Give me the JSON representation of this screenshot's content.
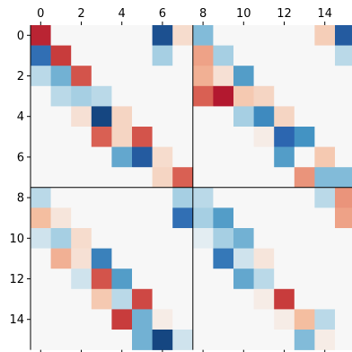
{
  "chart_data": {
    "type": "heatmap",
    "title": "",
    "xlabel": "",
    "ylabel": "",
    "x_range": [
      -0.5,
      15.5
    ],
    "y_range": [
      15.5,
      -0.5
    ],
    "x_ticks": [
      "0",
      "2",
      "4",
      "6",
      "8",
      "10",
      "12",
      "14"
    ],
    "y_ticks": [
      "0",
      "2",
      "4",
      "6",
      "8",
      "10",
      "12",
      "14"
    ],
    "colormap": "RdBu (diverging)",
    "value_range": [
      -1,
      1
    ],
    "block_dividers": [
      7.5
    ],
    "grid": false,
    "legend": "none",
    "colors": {
      "neutral": "#f7f7f7",
      "positive_max": "#a50026",
      "negative_max": "#2c66b0",
      "divider": "#000000"
    },
    "rows": [
      [
        0.85,
        0,
        0,
        0,
        0,
        0,
        -0.85,
        0.12,
        -0.3,
        0,
        0,
        0,
        0,
        0,
        0.18,
        -0.8
      ],
      [
        -0.7,
        0.75,
        0,
        0,
        0,
        0,
        -0.2,
        0,
        0.35,
        -0.2,
        0,
        0,
        0,
        0,
        0,
        -0.15
      ],
      [
        -0.15,
        -0.35,
        0.65,
        0,
        0,
        0,
        0,
        0,
        0.3,
        0.1,
        -0.45,
        0,
        0,
        0,
        0,
        0
      ],
      [
        0,
        -0.15,
        -0.2,
        -0.15,
        0,
        0,
        0,
        0,
        0.6,
        0.9,
        0.2,
        0.15,
        0,
        0,
        0,
        0
      ],
      [
        0,
        0,
        0.1,
        -0.9,
        0.15,
        0,
        0,
        0,
        0,
        0,
        -0.2,
        -0.55,
        0.15,
        0,
        0,
        0
      ],
      [
        0,
        0,
        0,
        0.6,
        0.15,
        0.65,
        0,
        0,
        0,
        0,
        0,
        0.05,
        -0.75,
        -0.5,
        0,
        0
      ],
      [
        0,
        0,
        0,
        0,
        -0.4,
        -0.8,
        0.12,
        0,
        0,
        0,
        0,
        0,
        -0.45,
        0,
        0.2,
        0
      ],
      [
        0,
        0,
        0,
        0,
        0,
        0,
        0.15,
        0.6,
        0,
        0,
        0,
        0,
        0,
        0.4,
        -0.3,
        -0.3
      ],
      [
        -0.15,
        0,
        0,
        0,
        0,
        0,
        0,
        -0.2,
        -0.15,
        0,
        0,
        0,
        0,
        0,
        -0.15,
        0.4
      ],
      [
        0.25,
        0.08,
        0,
        0,
        0,
        0,
        0,
        -0.7,
        -0.2,
        -0.45,
        0,
        0,
        0,
        0,
        0,
        0.35
      ],
      [
        -0.1,
        -0.2,
        0.12,
        0,
        0,
        0,
        0,
        0,
        -0.05,
        -0.2,
        -0.35,
        0,
        0,
        0,
        0,
        0
      ],
      [
        0,
        0.3,
        0.1,
        -0.6,
        0,
        0,
        0,
        0,
        0,
        -0.65,
        -0.1,
        0.08,
        0,
        0,
        0,
        0
      ],
      [
        0,
        0,
        -0.1,
        0.65,
        -0.45,
        0,
        0,
        0,
        0,
        0,
        -0.4,
        -0.15,
        0,
        0,
        0,
        0
      ],
      [
        0,
        0,
        0,
        0.2,
        -0.15,
        0.7,
        0,
        0,
        0,
        0,
        0,
        0.05,
        0.75,
        0,
        0,
        0
      ],
      [
        0,
        0,
        0,
        0,
        0.75,
        -0.35,
        0.05,
        0,
        0,
        0,
        0,
        0,
        0.05,
        0.25,
        -0.15,
        0
      ],
      [
        0,
        0,
        0,
        0,
        0,
        -0.35,
        -0.9,
        -0.1,
        0,
        0,
        0,
        0,
        0,
        -0.3,
        0.05,
        0
      ]
    ]
  }
}
